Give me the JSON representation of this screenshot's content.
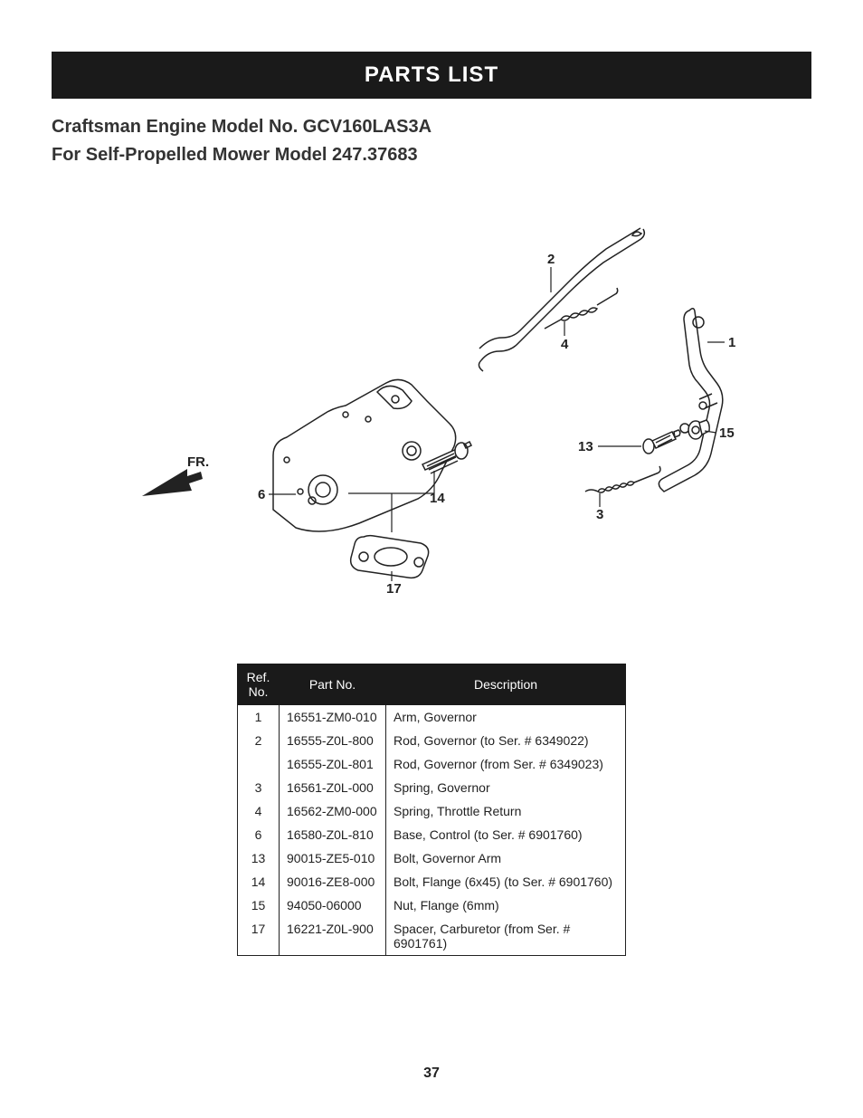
{
  "banner_title": "PARTS LIST",
  "subtitle_line1": "Craftsman Engine Model No. GCV160LAS3A",
  "subtitle_line2": "For Self-Propelled Mower Model 247.37683",
  "page_number": "37",
  "callouts": {
    "c1": "1",
    "c2": "2",
    "c3": "3",
    "c4": "4",
    "c6": "6",
    "c13": "13",
    "c14": "14",
    "c15": "15",
    "c17": "17",
    "fr": "FR."
  },
  "table": {
    "headers": {
      "ref": "Ref.\nNo.",
      "partno": "Part No.",
      "desc": "Description"
    },
    "rows": [
      {
        "ref": "1",
        "partno": "16551-ZM0-010",
        "desc": "Arm, Governor"
      },
      {
        "ref": "2",
        "partno": "16555-Z0L-800",
        "desc": "Rod, Governor (to Ser. # 6349022)"
      },
      {
        "ref": "",
        "partno": "16555-Z0L-801",
        "desc": "Rod, Governor (from Ser. # 6349023)"
      },
      {
        "ref": "3",
        "partno": "16561-Z0L-000",
        "desc": "Spring, Governor"
      },
      {
        "ref": "4",
        "partno": "16562-ZM0-000",
        "desc": "Spring, Throttle Return"
      },
      {
        "ref": "6",
        "partno": "16580-Z0L-810",
        "desc": "Base, Control (to Ser. # 6901760)"
      },
      {
        "ref": "13",
        "partno": "90015-ZE5-010",
        "desc": "Bolt, Governor Arm"
      },
      {
        "ref": "14",
        "partno": "90016-ZE8-000",
        "desc": "Bolt, Flange (6x45) (to Ser. # 6901760)"
      },
      {
        "ref": "15",
        "partno": "94050-06000",
        "desc": "Nut, Flange (6mm)"
      },
      {
        "ref": "17",
        "partno": "16221-Z0L-900",
        "desc": "Spacer, Carburetor (from Ser. # 6901761)"
      }
    ]
  }
}
